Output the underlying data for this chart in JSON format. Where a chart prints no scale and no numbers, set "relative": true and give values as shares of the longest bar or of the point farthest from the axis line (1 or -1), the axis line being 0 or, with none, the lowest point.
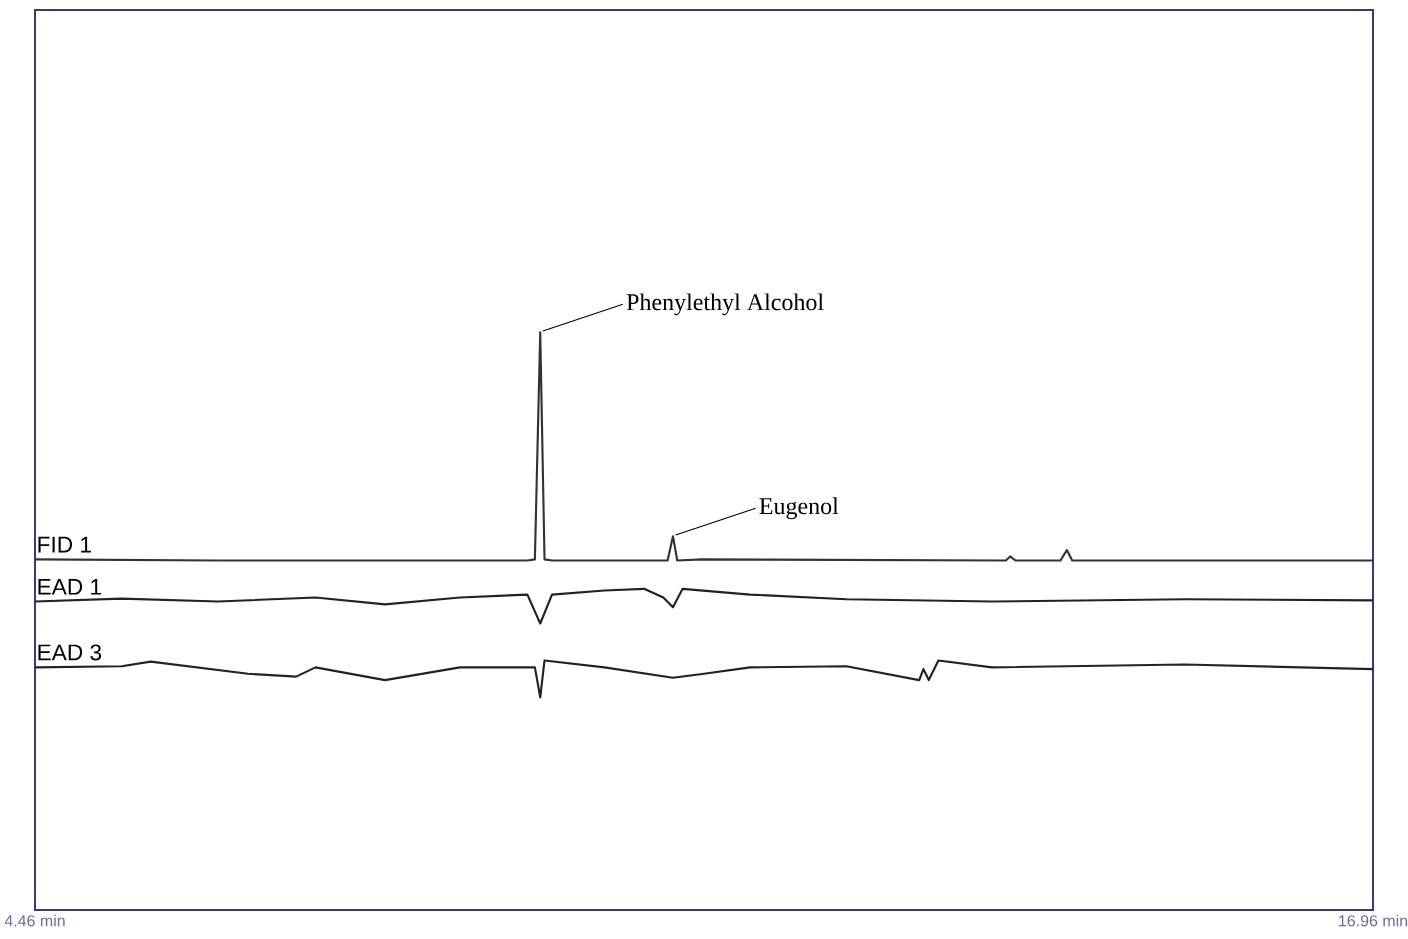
{
  "chart_data": {
    "type": "line",
    "relative": true,
    "xlim": [
      4.46,
      16.96
    ],
    "xticks": [
      {
        "value": 4.46,
        "label": "4.46 min"
      },
      {
        "value": 16.96,
        "label": "16.96 min"
      }
    ],
    "tick_labels": "x",
    "line_style": "solid",
    "series": [
      {
        "name": "FID 1",
        "color": "#333333",
        "x": [
          4.46,
          6.17,
          7.98,
          9.06,
          9.13,
          9.18,
          9.22,
          9.29,
          10.37,
          10.42,
          10.46,
          10.69,
          13.53,
          13.57,
          13.62,
          14.04,
          14.1,
          14.15,
          15.2,
          16.96
        ],
        "values": [
          0.607,
          0.605,
          0.605,
          0.605,
          0.607,
          1,
          0.607,
          0.605,
          0.605,
          0.647,
          0.605,
          0.607,
          0.605,
          0.612,
          0.605,
          0.605,
          0.623,
          0.605,
          0.605,
          0.605
        ]
      },
      {
        "name": "EAD 1",
        "color": "#222222",
        "x": [
          4.46,
          5.27,
          6.17,
          7.08,
          7.73,
          8.43,
          9.06,
          9.18,
          9.29,
          9.78,
          10.15,
          10.33,
          10.42,
          10.51,
          11.14,
          12.04,
          13.4,
          15.2,
          16.96
        ],
        "values": [
          0.534,
          0.539,
          0.534,
          0.541,
          0.529,
          0.541,
          0.546,
          0.496,
          0.546,
          0.553,
          0.556,
          0.541,
          0.524,
          0.556,
          0.546,
          0.538,
          0.534,
          0.538,
          0.536
        ]
      },
      {
        "name": "EAD 3",
        "color": "#222222",
        "x": [
          4.46,
          5.27,
          5.54,
          6.45,
          6.9,
          7.08,
          7.73,
          8.43,
          9.13,
          9.18,
          9.22,
          9.78,
          10.42,
          10.71,
          11.14,
          12.04,
          12.72,
          12.76,
          12.81,
          12.9,
          13.4,
          15.2,
          16.96
        ],
        "values": [
          0.42,
          0.422,
          0.43,
          0.409,
          0.404,
          0.42,
          0.398,
          0.42,
          0.42,
          0.368,
          0.432,
          0.42,
          0.402,
          0.409,
          0.42,
          0.422,
          0.398,
          0.417,
          0.398,
          0.432,
          0.42,
          0.425,
          0.417
        ]
      }
    ],
    "annotations": [
      {
        "text": "Phenylethyl Alcohol",
        "x": 9.18,
        "y": 1
      },
      {
        "text": "Eugenol",
        "x": 10.42,
        "y": 0.647
      }
    ]
  }
}
